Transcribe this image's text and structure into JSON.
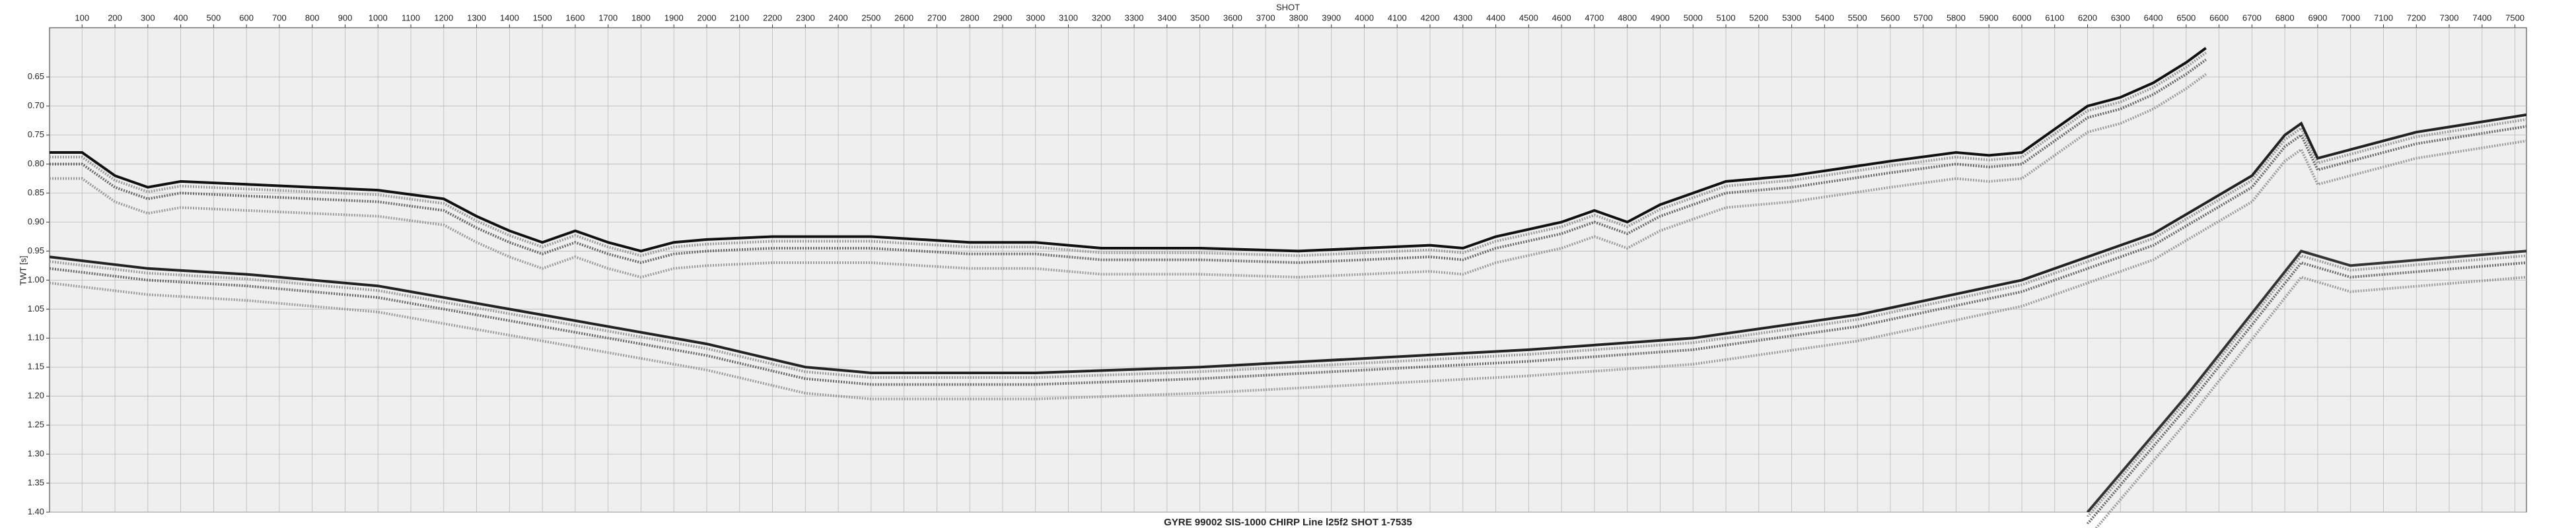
{
  "chart_data": {
    "type": "line",
    "title": "GYRE 99002 SIS-1000 CHIRP Line l25f2 SHOT 1-7535",
    "xlabel": "SHOT",
    "ylabel": "TWT [s]",
    "xlim": [
      1,
      7535
    ],
    "ylim": [
      0.565,
      1.4
    ],
    "y_inverted": true,
    "grid": true,
    "xticks": [
      100,
      200,
      300,
      400,
      500,
      600,
      700,
      800,
      900,
      1000,
      1100,
      1200,
      1300,
      1400,
      1500,
      1600,
      1700,
      1800,
      1900,
      2000,
      2100,
      2200,
      2300,
      2400,
      2500,
      2600,
      2700,
      2800,
      2900,
      3000,
      3100,
      3200,
      3300,
      3400,
      3500,
      3600,
      3700,
      3800,
      3900,
      4000,
      4100,
      4200,
      4300,
      4400,
      4500,
      4600,
      4700,
      4800,
      4900,
      5000,
      5100,
      5200,
      5300,
      5400,
      5500,
      5600,
      5700,
      5800,
      5900,
      6000,
      6100,
      6200,
      6300,
      6400,
      6500,
      6600,
      6700,
      6800,
      6900,
      7000,
      7100,
      7200,
      7300,
      7400,
      7500
    ],
    "yticks": [
      0.65,
      {
        "value": 0.7,
        "label": "0.70"
      },
      0.75,
      {
        "value": 0.8,
        "label": "0.80"
      },
      0.85,
      {
        "value": 0.9,
        "label": "0.90"
      },
      0.95,
      {
        "value": 1.0,
        "label": "1.00"
      },
      1.05,
      {
        "value": 1.1,
        "label": "1.10"
      },
      1.15,
      {
        "value": 1.2,
        "label": "1.20"
      },
      1.25,
      {
        "value": 1.3,
        "label": "1.30"
      },
      1.35,
      {
        "value": 1.4,
        "label": "1.40"
      }
    ],
    "series": [
      {
        "color": "#111111",
        "x": [
          1,
          100,
          200,
          300,
          400,
          600,
          800,
          1000,
          1200,
          1300,
          1400,
          1500,
          1600,
          1700,
          1800,
          1900,
          2000,
          2200,
          2500,
          2800,
          3000,
          3200,
          3500,
          3800,
          4000,
          4200,
          4300,
          4400,
          4600,
          4700,
          4800,
          4900,
          5100,
          5300,
          5600,
          5800,
          5900,
          6000,
          6100,
          6200,
          6300,
          6400,
          6500,
          6560
        ],
        "values": [
          0.78,
          0.78,
          0.82,
          0.84,
          0.83,
          0.835,
          0.84,
          0.845,
          0.86,
          0.89,
          0.915,
          0.935,
          0.915,
          0.935,
          0.95,
          0.935,
          0.93,
          0.925,
          0.925,
          0.935,
          0.935,
          0.945,
          0.945,
          0.95,
          0.945,
          0.94,
          0.945,
          0.925,
          0.9,
          0.88,
          0.9,
          0.87,
          0.83,
          0.82,
          0.795,
          0.78,
          0.785,
          0.78,
          0.74,
          0.7,
          0.685,
          0.66,
          0.625,
          0.6
        ]
      },
      {
        "color": "#222222",
        "x": [
          1,
          300,
          600,
          1000,
          1500,
          2000,
          2300,
          2500,
          3000,
          3500,
          4000,
          4500,
          5000,
          5500,
          6000,
          6400,
          6700,
          6800,
          6850,
          6900,
          7000,
          7200,
          7535
        ],
        "values": [
          0.96,
          0.98,
          0.99,
          1.01,
          1.06,
          1.11,
          1.15,
          1.16,
          1.16,
          1.15,
          1.135,
          1.12,
          1.1,
          1.06,
          1.0,
          0.92,
          0.82,
          0.75,
          0.73,
          0.79,
          0.775,
          0.745,
          0.715
        ]
      },
      {
        "color": "#333333",
        "x": [
          6200,
          6500,
          6850,
          7000,
          7535
        ],
        "values": [
          1.4,
          1.2,
          0.95,
          0.975,
          0.95
        ]
      }
    ]
  }
}
